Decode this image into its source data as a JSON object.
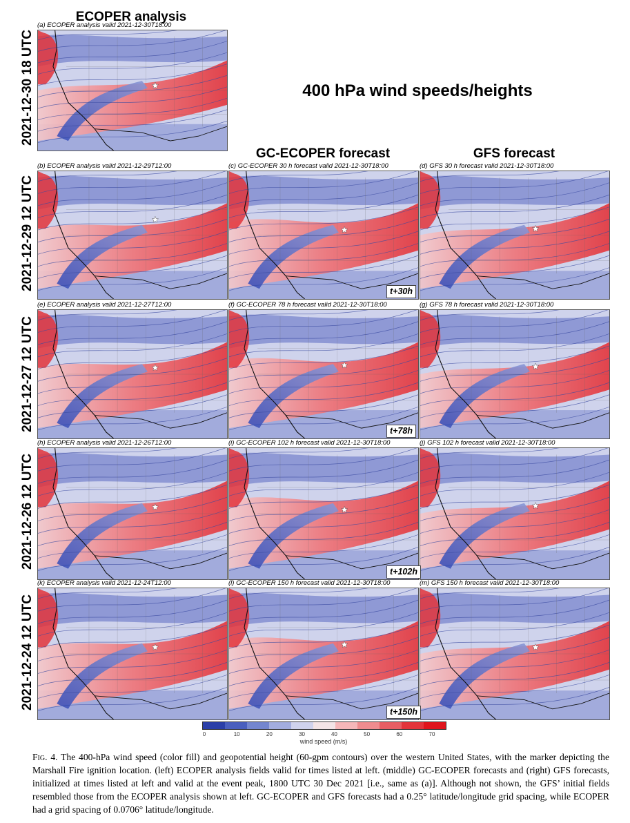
{
  "figure": {
    "column_titles": {
      "ecoper": "ECOPER analysis",
      "gc": "GC-ECOPER forecast",
      "gfs": "GFS forecast"
    },
    "main_title": "400 hPa wind speeds/heights",
    "row_labels": [
      "2021-12-30 18 UTC",
      "2021-12-29 12 UTC",
      "2021-12-27 12 UTC",
      "2021-12-26 12 UTC",
      "2021-12-24 12 UTC"
    ],
    "panels": {
      "a": "(a) ECOPER analysis valid 2021-12-30T18:00",
      "b": "(b) ECOPER analysis valid 2021-12-29T12:00",
      "c": "(c) GC-ECOPER 30 h forecast valid 2021-12-30T18:00",
      "d": "(d) GFS 30 h forecast valid 2021-12-30T18:00",
      "e": "(e) ECOPER analysis valid 2021-12-27T12:00",
      "f": "(f) GC-ECOPER 78 h forecast valid 2021-12-30T18:00",
      "g": "(g) GFS 78 h forecast valid 2021-12-30T18:00",
      "h": "(h) ECOPER analysis valid 2021-12-26T12:00",
      "i": "(i) GC-ECOPER 102 h forecast valid 2021-12-30T18:00",
      "j": "(j) GFS 102 h forecast valid 2021-12-30T18:00",
      "k": "(k) ECOPER analysis valid 2021-12-24T12:00",
      "l": "(l) GC-ECOPER 150 h forecast valid 2021-12-30T18:00",
      "m": "(m) GFS 150 h forecast valid 2021-12-30T18:00"
    },
    "lead_times": [
      "t+30h",
      "t+78h",
      "t+102h",
      "t+150h"
    ],
    "colorbar": {
      "label": "wind speed (m/s)",
      "ticks": [
        "0",
        "10",
        "20",
        "30",
        "40",
        "50",
        "60",
        "70"
      ],
      "colors": [
        "#2b3fa8",
        "#4a5fbe",
        "#7486cf",
        "#a3addf",
        "#cfd2ec",
        "#f3e4e6",
        "#f6b7b9",
        "#ef8c8f",
        "#e85e63",
        "#e3343b",
        "#e0141c"
      ]
    }
  },
  "caption": {
    "fig_label": "Fig. 4.",
    "text": "The 400-hPa wind speed (color fill) and geopotential height (60-gpm contours) over the western United States, with the marker depicting the Marshall Fire ignition location. (left) ECOPER analysis fields valid for times listed at left. (middle) GC-ECOPER forecasts and (right) GFS forecasts, initialized at times listed at left and valid at the event peak, 1800 UTC 30 Dec 2021 [i.e., same as (a)]. Although not shown, the GFS’ initial fields resembled those from the ECOPER analysis shown at left. GC-ECOPER and GFS forecasts had a 0.25° latitude/longitude grid spacing, while ECOPER had a grid spacing of 0.0706° latitude/longitude."
  }
}
